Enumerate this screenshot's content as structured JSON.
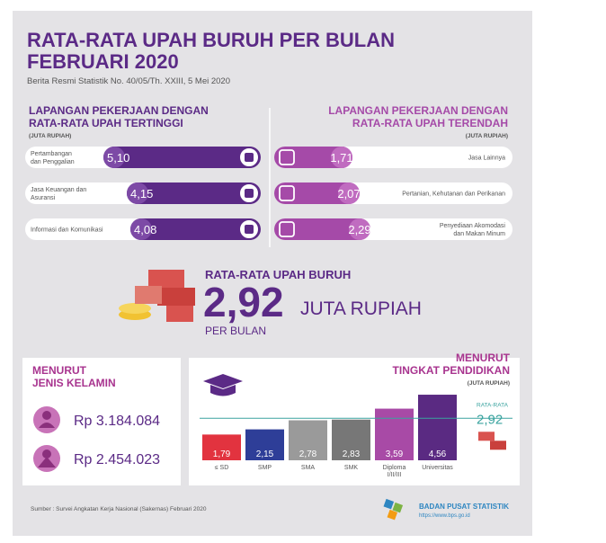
{
  "header": {
    "title_lines": [
      "RATA-RATA UPAH BURUH PER BULAN",
      "FEBRUARI 2020"
    ],
    "subtitle": "Berita Resmi Statistik No. 40/05/Th. XXIII, 5 Mei 2020"
  },
  "highest": {
    "heading_lines": [
      "LAPANGAN PEKERJAAN DENGAN",
      "RATA-RATA UPAH TERTINGGI"
    ],
    "unit": "(JUTA RUPIAH)",
    "items": [
      {
        "label_lines": [
          "Pertambangan",
          "dan Penggalian"
        ],
        "value": "5,10"
      },
      {
        "label_lines": [
          "Jasa Keuangan dan",
          "Asuransi"
        ],
        "value": "4,15"
      },
      {
        "label_lines": [
          "Informasi dan Komunikasi"
        ],
        "value": "4,08"
      }
    ]
  },
  "lowest": {
    "heading_lines": [
      "LAPANGAN PEKERJAAN DENGAN",
      "RATA-RATA UPAH TERENDAH"
    ],
    "unit": "(JUTA RUPIAH)",
    "items": [
      {
        "label_lines": [
          "Jasa Lainnya"
        ],
        "value": "1,71"
      },
      {
        "label_lines": [
          "Pertanian, Kehutanan dan Perikanan"
        ],
        "value": "2,07"
      },
      {
        "label_lines": [
          "Penyediaan Akomodasi",
          "dan Makan Minum"
        ],
        "value": "2,29"
      }
    ]
  },
  "average": {
    "title": "RATA-RATA UPAH BURUH",
    "value": "2,92",
    "unit": "JUTA RUPIAH",
    "period": "PER BULAN"
  },
  "gender": {
    "heading_lines": [
      "MENURUT",
      "JENIS KELAMIN"
    ],
    "items": [
      "Rp 3.184.084",
      "Rp 2.454.023"
    ]
  },
  "chart_data": {
    "type": "bar",
    "title_lines": [
      "MENURUT",
      "TINGKAT PENDIDIKAN"
    ],
    "unit": "(JUTA RUPIAH)",
    "categories": [
      "≤ SD",
      "SMP",
      "SMA",
      "SMK",
      "Diploma I/II/III",
      "Universitas"
    ],
    "values": [
      1.79,
      2.15,
      2.78,
      2.83,
      3.59,
      4.56
    ],
    "value_labels": [
      "1,79",
      "2,15",
      "2,78",
      "2,83",
      "3,59",
      "4,56"
    ],
    "colors": [
      "#e2333f",
      "#2e3e98",
      "#9a9a9a",
      "#777777",
      "#a84aa6",
      "#5a2a82"
    ],
    "ylim": [
      0,
      5
    ],
    "reference": {
      "label": "RATA-RATA",
      "value": 2.92,
      "value_label": "2,92",
      "color": "#3aa39f"
    }
  },
  "footer": {
    "source": "Sumber : Survei Angkatan Kerja Nasional (Sakernas) Februari 2020",
    "org": "BADAN PUSAT STATISTIK",
    "url": "https://www.bps.go.id"
  }
}
